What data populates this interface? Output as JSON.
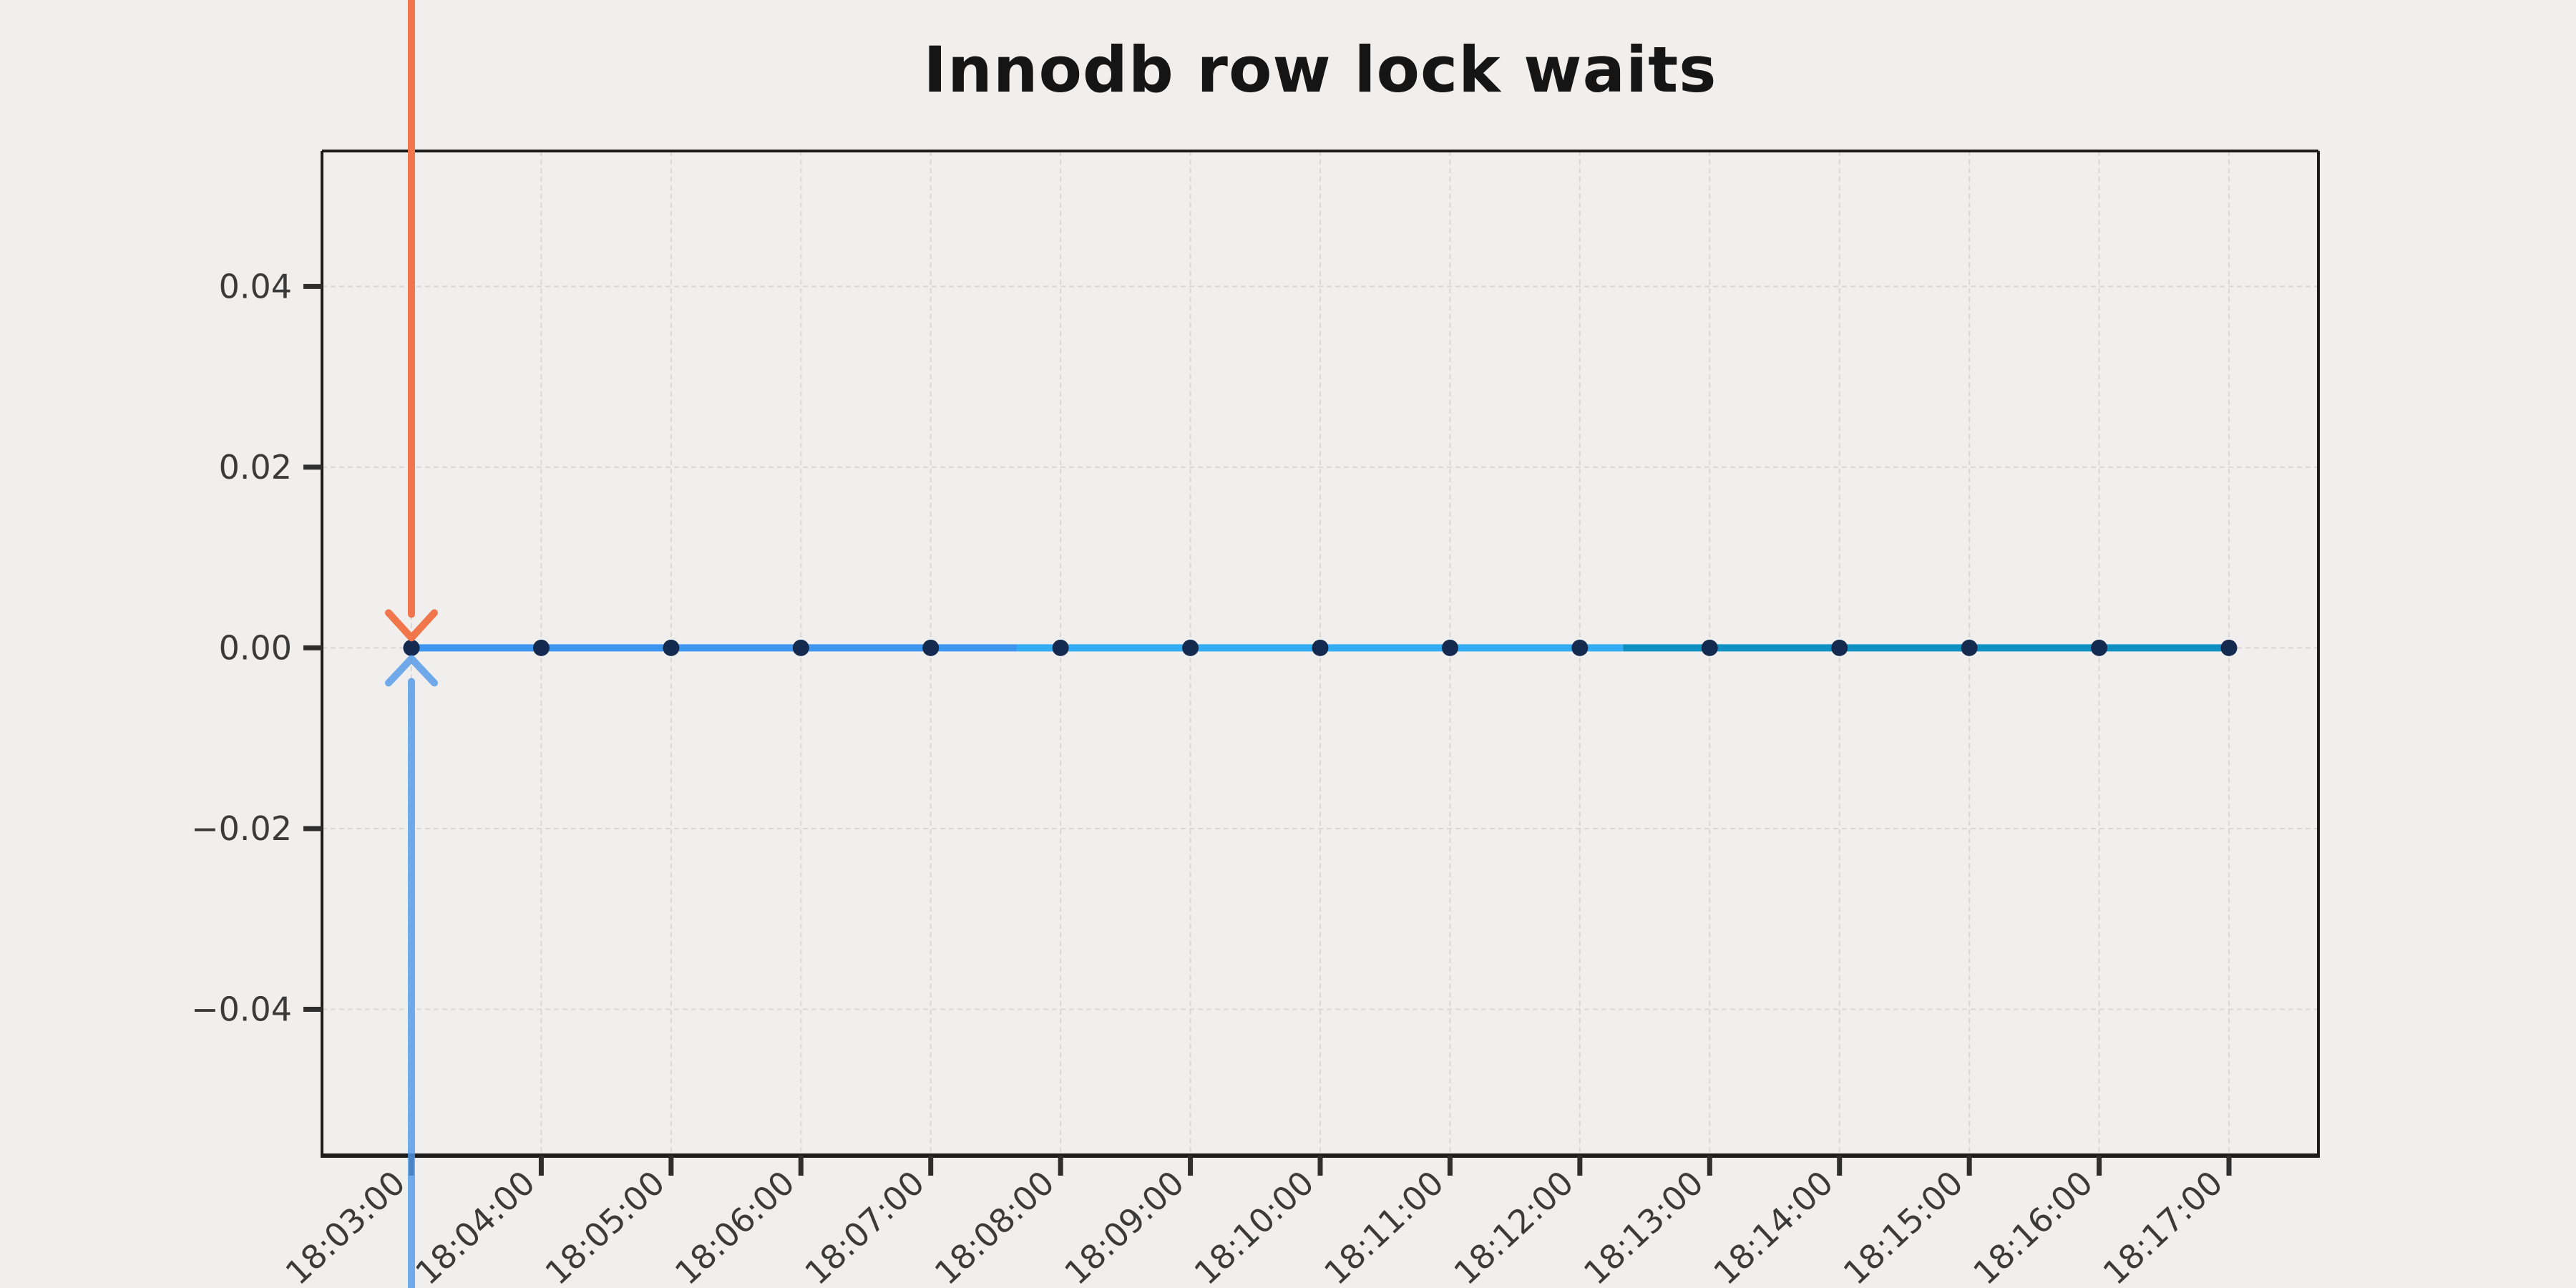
{
  "page": {
    "background_color": "#f0efee"
  },
  "chart_data": {
    "type": "line",
    "title": "Innodb row lock waits",
    "x_tick_labels": [
      "18:03:00",
      "18:04:00",
      "18:05:00",
      "18:06:00",
      "18:07:00",
      "18:08:00",
      "18:09:00",
      "18:10:00",
      "18:11:00",
      "18:12:00",
      "18:13:00",
      "18:14:00",
      "18:15:00",
      "18:16:00",
      "18:17:00"
    ],
    "y_tick_labels": [
      "0.04",
      "0.02",
      "0.00",
      "−0.02",
      "−0.04"
    ],
    "y_ticks": [
      0.04,
      0.02,
      0.0,
      -0.02,
      -0.04
    ],
    "ylim": [
      -0.0562,
      0.055
    ],
    "xlabel": "",
    "ylabel": "",
    "grid": {
      "style": "dashed",
      "color": "#d8d8d6",
      "horizontal": true,
      "vertical": true
    },
    "series": [
      {
        "name": "innodb-row-lock-waits",
        "x": [
          "18:03:00",
          "18:04:00",
          "18:05:00",
          "18:06:00",
          "18:07:00",
          "18:08:00",
          "18:09:00",
          "18:10:00",
          "18:11:00",
          "18:12:00",
          "18:13:00",
          "18:14:00",
          "18:15:00",
          "18:16:00",
          "18:17:00"
        ],
        "values": [
          0.0,
          0.0,
          0.0,
          0.0,
          0.0,
          0.0,
          0.0,
          0.0,
          0.0,
          0.0,
          0.0,
          0.0,
          0.0,
          0.0,
          0.0
        ]
      }
    ],
    "line_segments": [
      {
        "from": "18:03:00",
        "to": "18:07:40",
        "color": "#3c96f0"
      },
      {
        "from": "18:07:40",
        "to": "18:12:20",
        "color": "#32acf2"
      },
      {
        "from": "18:12:20",
        "to": "18:17:00",
        "color": "#0e90c2"
      }
    ],
    "marker": {
      "shape": "circle",
      "color": "#142a4f"
    },
    "annotations": [
      {
        "shape": "arrow",
        "direction": "down",
        "at_x": "18:03:00",
        "at_y": 0,
        "color": "#f1764b",
        "opacity": 1
      },
      {
        "shape": "arrow",
        "direction": "up",
        "at_x": "18:03:00",
        "at_y": 0,
        "color": "#4f98e8",
        "opacity": 0.8
      }
    ],
    "colors": {
      "spine": "#1c1c1c",
      "tick_mark": "#2e2e2e",
      "tick_label": "#3a3a3a",
      "title": "#151515"
    },
    "legend": null
  }
}
